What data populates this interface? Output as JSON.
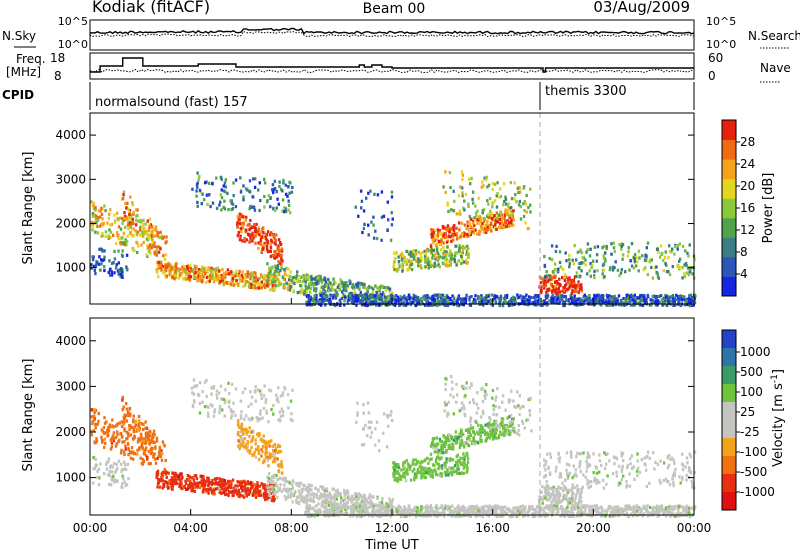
{
  "header": {
    "station": "Kodiak (fitACF)",
    "beam": "Beam 00",
    "date": "03/Aug/2009"
  },
  "params": {
    "nsky_label": "N.Sky",
    "nsearch_label": "N.Search",
    "freq_label_1": "Freq.",
    "freq_label_2": "[MHz]",
    "nave_label": "Nave",
    "cpid_label": "CPID",
    "exp1": "normalsound (fast) 157",
    "exp2": "themis 3300",
    "noise_left_ticks": [
      "10^5",
      "10^0"
    ],
    "noise_right_ticks": [
      "10^5",
      "10^0"
    ],
    "freq_ticks": [
      "18",
      "8"
    ],
    "nave_ticks": [
      "60",
      "0"
    ]
  },
  "chart_data": [
    {
      "type": "heatmap",
      "name": "power",
      "ylabel": "Slant Range [km]",
      "yticks": [
        1000,
        2000,
        3000,
        4000
      ],
      "ylim": [
        180,
        4500
      ],
      "colorbar_label": "Power [dB]",
      "colorbar_ticks": [
        4,
        8,
        12,
        16,
        20,
        24,
        28
      ],
      "colorbar_range": [
        0,
        32
      ],
      "colors": [
        "#1525e0",
        "#2c55b8",
        "#3a7e84",
        "#4fa34a",
        "#8bc83a",
        "#e6d51f",
        "#f5a31a",
        "#f06a14",
        "#e8200e"
      ]
    },
    {
      "type": "heatmap",
      "name": "velocity",
      "ylabel": "Slant Range [km]",
      "yticks": [
        1000,
        2000,
        3000,
        4000
      ],
      "ylim": [
        180,
        4500
      ],
      "xlabel": "Time UT",
      "xticks": [
        "00:00",
        "04:00",
        "08:00",
        "12:00",
        "16:00",
        "20:00",
        "00:00"
      ],
      "colorbar_label": "Velocity [m s^-1]",
      "colorbar_ticks": [
        "1000",
        "500",
        "100",
        "25",
        "-25",
        "-100",
        "-500",
        "-1000"
      ],
      "colors": [
        "#2642c8",
        "#2d74a8",
        "#3a9a68",
        "#6ec43c",
        "#c4c4c0",
        "#c4c4c0",
        "#f5a21a",
        "#f07012",
        "#e83010",
        "#e01010"
      ]
    }
  ]
}
